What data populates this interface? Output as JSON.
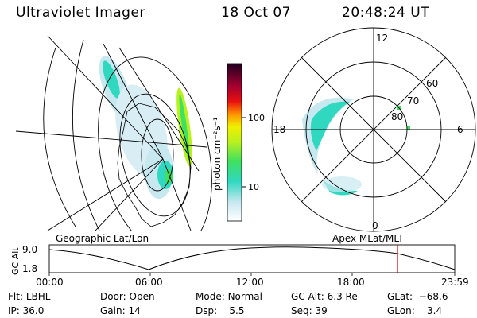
{
  "header": {
    "title": "Ultraviolet Imager",
    "date": "18 Oct 07",
    "time": "20:48:24 UT"
  },
  "colorbar": {
    "label": "photon cm⁻²s⁻¹",
    "ticks": [
      "100",
      "10"
    ]
  },
  "maps": {
    "left_caption": "Geographic Lat/Lon",
    "right_caption": "Apex MLat/MLT",
    "mlt_labels": {
      "top": "12",
      "left": "18",
      "right": "6",
      "bottom": "0"
    },
    "mlat_labels": [
      "60",
      "70",
      "80"
    ]
  },
  "altitude_plot": {
    "ylabel": "GC Alt",
    "yticks": [
      "9.0",
      "1.8"
    ],
    "xticks": [
      "00:00",
      "06:00",
      "12:00",
      "18:00",
      "23:59"
    ],
    "marker_color": "#cc0000"
  },
  "status": {
    "row1": [
      {
        "label": "Flt:",
        "value": "LBHL"
      },
      {
        "label": "Door:",
        "value": "Open"
      },
      {
        "label": "Mode:",
        "value": "Normal"
      },
      {
        "label": "GC Alt:",
        "value": "6.3 Re"
      },
      {
        "label": "GLat:",
        "value": "−68.6"
      }
    ],
    "row2": [
      {
        "label": "IP:",
        "value": "36.0"
      },
      {
        "label": "Gain:",
        "value": "14"
      },
      {
        "label": "Dsp:",
        "value": "5.5"
      },
      {
        "label": "Seq:",
        "value": "39"
      },
      {
        "label": "GLon:",
        "value": "3.4"
      }
    ]
  }
}
